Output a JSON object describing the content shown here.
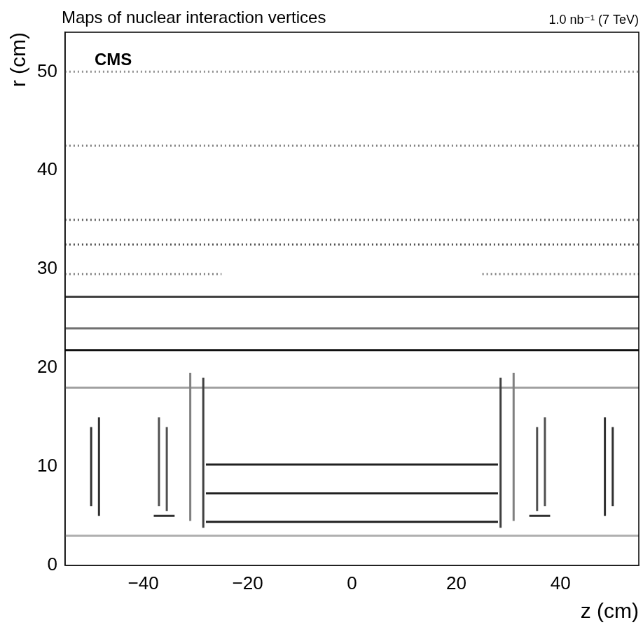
{
  "chart_data": {
    "type": "scatter",
    "title": "Maps of nuclear interaction vertices",
    "subtitle": "1.0 nb⁻¹ (7 TeV)",
    "annotations": [
      {
        "text": "CMS"
      }
    ],
    "x_label": "z (cm)",
    "y_label": "r (cm)",
    "xlim": [
      -55,
      55
    ],
    "ylim": [
      0,
      54
    ],
    "xticks": [
      -40,
      -20,
      0,
      20,
      40
    ],
    "yticks": [
      0,
      10,
      20,
      30,
      40,
      50
    ],
    "grid": false,
    "series": [
      {
        "x": [
          -55,
          55
        ],
        "values": [
          3,
          3
        ],
        "color": "#b0b0b0",
        "line_style": "solid",
        "marker": "none"
      },
      {
        "x": [
          -28,
          28
        ],
        "values": [
          4.4,
          4.4
        ],
        "color": "#202020",
        "line_style": "solid",
        "marker": "none"
      },
      {
        "x": [
          -28,
          28
        ],
        "values": [
          7.3,
          7.3
        ],
        "color": "#202020",
        "line_style": "solid",
        "marker": "none"
      },
      {
        "x": [
          -28,
          28
        ],
        "values": [
          10.2,
          10.2
        ],
        "color": "#202020",
        "line_style": "solid",
        "marker": "none"
      },
      {
        "x": [
          -28.5,
          -28.5
        ],
        "values": [
          3.8,
          19
        ],
        "color": "#404040",
        "line_style": "solid",
        "marker": "none"
      },
      {
        "x": [
          28.5,
          28.5
        ],
        "values": [
          3.8,
          19
        ],
        "color": "#404040",
        "line_style": "solid",
        "marker": "none"
      },
      {
        "x": [
          -31,
          -31
        ],
        "values": [
          4.5,
          19.5
        ],
        "color": "#808080",
        "line_style": "solid",
        "marker": "none"
      },
      {
        "x": [
          31,
          31
        ],
        "values": [
          4.5,
          19.5
        ],
        "color": "#808080",
        "line_style": "solid",
        "marker": "none"
      },
      {
        "x": [
          -38,
          -34
        ],
        "values": [
          5,
          5
        ],
        "color": "#303030",
        "line_style": "solid",
        "marker": "none"
      },
      {
        "x": [
          34,
          38
        ],
        "values": [
          5,
          5
        ],
        "color": "#303030",
        "line_style": "solid",
        "marker": "none"
      },
      {
        "x": [
          -50,
          -50
        ],
        "values": [
          6,
          14
        ],
        "color": "#303030",
        "line_style": "solid",
        "marker": "none"
      },
      {
        "x": [
          -48.5,
          -48.5
        ],
        "values": [
          5,
          15
        ],
        "color": "#303030",
        "line_style": "solid",
        "marker": "none"
      },
      {
        "x": [
          -37,
          -37
        ],
        "values": [
          6,
          15
        ],
        "color": "#505050",
        "line_style": "solid",
        "marker": "none"
      },
      {
        "x": [
          -35.5,
          -35.5
        ],
        "values": [
          5.5,
          14
        ],
        "color": "#505050",
        "line_style": "solid",
        "marker": "none"
      },
      {
        "x": [
          35.5,
          35.5
        ],
        "values": [
          5.5,
          14
        ],
        "color": "#505050",
        "line_style": "solid",
        "marker": "none"
      },
      {
        "x": [
          37,
          37
        ],
        "values": [
          6,
          15
        ],
        "color": "#505050",
        "line_style": "solid",
        "marker": "none"
      },
      {
        "x": [
          48.5,
          48.5
        ],
        "values": [
          5,
          15
        ],
        "color": "#303030",
        "line_style": "solid",
        "marker": "none"
      },
      {
        "x": [
          50,
          50
        ],
        "values": [
          6,
          14
        ],
        "color": "#303030",
        "line_style": "solid",
        "marker": "none"
      },
      {
        "x": [
          -55,
          55
        ],
        "values": [
          18,
          18
        ],
        "color": "#a0a0a0",
        "line_style": "solid",
        "marker": "none"
      },
      {
        "x": [
          -55,
          55
        ],
        "values": [
          21.8,
          21.8
        ],
        "color": "#101010",
        "line_style": "solid",
        "marker": "none"
      },
      {
        "x": [
          -55,
          55
        ],
        "values": [
          24,
          24
        ],
        "color": "#707070",
        "line_style": "solid",
        "marker": "none"
      },
      {
        "x": [
          -55,
          55
        ],
        "values": [
          27.2,
          27.2
        ],
        "color": "#404040",
        "line_style": "solid",
        "marker": "none"
      },
      {
        "x": [
          -55,
          -25
        ],
        "values": [
          29.5,
          29.5
        ],
        "color": "#808080",
        "line_style": "dotted",
        "marker": "none"
      },
      {
        "x": [
          25,
          55
        ],
        "values": [
          29.5,
          29.5
        ],
        "color": "#808080",
        "line_style": "dotted",
        "marker": "none"
      },
      {
        "x": [
          -55,
          55
        ],
        "values": [
          32.5,
          32.5
        ],
        "color": "#505050",
        "line_style": "dotted",
        "marker": "none"
      },
      {
        "x": [
          -55,
          55
        ],
        "values": [
          35,
          35
        ],
        "color": "#606060",
        "line_style": "dotted",
        "marker": "none"
      },
      {
        "x": [
          -55,
          55
        ],
        "values": [
          42.5,
          42.5
        ],
        "color": "#808080",
        "line_style": "dotted",
        "marker": "none"
      },
      {
        "x": [
          -55,
          55
        ],
        "values": [
          50,
          50
        ],
        "color": "#909090",
        "line_style": "dotted",
        "marker": "none"
      }
    ]
  }
}
